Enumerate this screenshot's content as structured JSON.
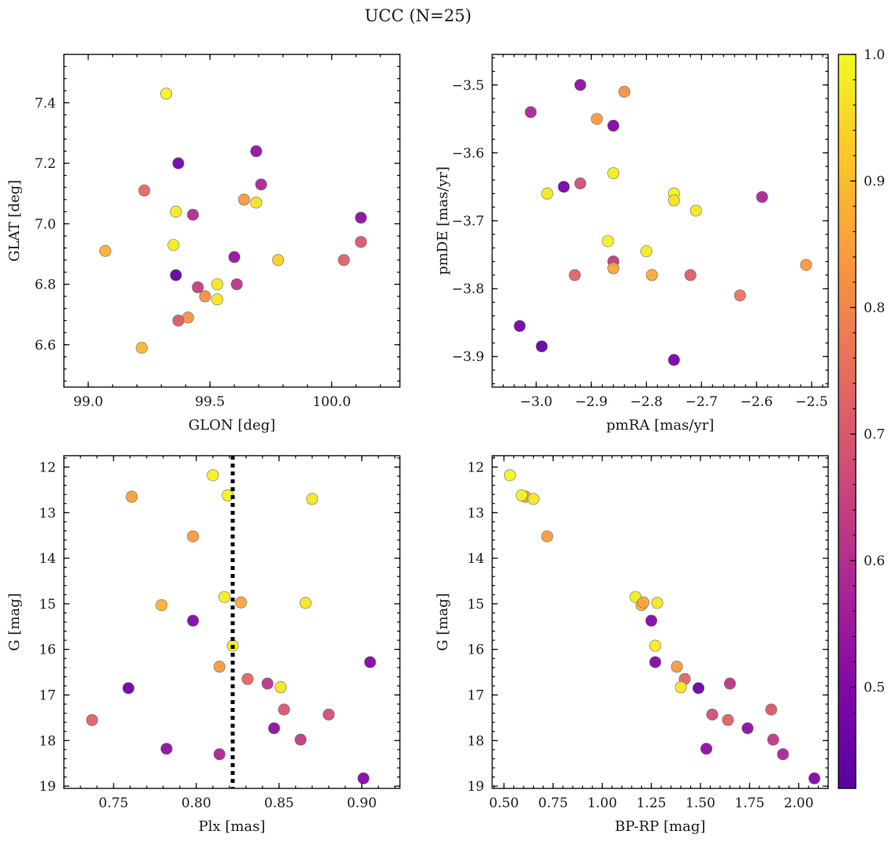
{
  "title": "UCC (N=25)",
  "colorbar": {
    "min": 0.42,
    "max": 1.0,
    "ticks": [
      0.5,
      0.6,
      0.7,
      0.8,
      0.9,
      1.0
    ],
    "tick_labels": [
      "0.5",
      "0.6",
      "0.7",
      "0.8",
      "0.9",
      "1.0"
    ],
    "colormap": "plasma"
  },
  "chart_data": [
    {
      "type": "scatter",
      "xlabel": "GLON [deg]",
      "ylabel": "GLAT [deg]",
      "xlim": [
        98.9,
        100.28
      ],
      "ylim": [
        6.46,
        7.56
      ],
      "y_inverted": false,
      "xticks": [
        99.0,
        99.5,
        100.0
      ],
      "xtick_labels": [
        "99.0",
        "99.5",
        "100.0"
      ],
      "yticks": [
        6.6,
        6.8,
        7.0,
        7.2,
        7.4
      ],
      "ytick_labels": [
        "6.6",
        "6.8",
        "7.0",
        "7.2",
        "7.4"
      ],
      "points": [
        {
          "x": 99.32,
          "y": 7.43,
          "c": 0.99
        },
        {
          "x": 99.37,
          "y": 7.2,
          "c": 0.47
        },
        {
          "x": 99.69,
          "y": 7.24,
          "c": 0.53
        },
        {
          "x": 99.23,
          "y": 7.11,
          "c": 0.74
        },
        {
          "x": 99.71,
          "y": 7.13,
          "c": 0.58
        },
        {
          "x": 99.64,
          "y": 7.08,
          "c": 0.84
        },
        {
          "x": 99.69,
          "y": 7.07,
          "c": 0.96
        },
        {
          "x": 99.36,
          "y": 7.04,
          "c": 0.98
        },
        {
          "x": 99.43,
          "y": 7.03,
          "c": 0.6
        },
        {
          "x": 100.12,
          "y": 7.02,
          "c": 0.52
        },
        {
          "x": 100.12,
          "y": 6.94,
          "c": 0.7
        },
        {
          "x": 99.35,
          "y": 6.93,
          "c": 0.98
        },
        {
          "x": 99.07,
          "y": 6.91,
          "c": 0.88
        },
        {
          "x": 99.6,
          "y": 6.89,
          "c": 0.53
        },
        {
          "x": 99.78,
          "y": 6.88,
          "c": 0.93
        },
        {
          "x": 100.05,
          "y": 6.88,
          "c": 0.72
        },
        {
          "x": 99.36,
          "y": 6.83,
          "c": 0.44
        },
        {
          "x": 99.61,
          "y": 6.8,
          "c": 0.62
        },
        {
          "x": 99.53,
          "y": 6.8,
          "c": 0.97
        },
        {
          "x": 99.45,
          "y": 6.79,
          "c": 0.64
        },
        {
          "x": 99.48,
          "y": 6.76,
          "c": 0.82
        },
        {
          "x": 99.53,
          "y": 6.75,
          "c": 0.97
        },
        {
          "x": 99.41,
          "y": 6.69,
          "c": 0.83
        },
        {
          "x": 99.37,
          "y": 6.68,
          "c": 0.7
        },
        {
          "x": 99.22,
          "y": 6.59,
          "c": 0.89
        }
      ]
    },
    {
      "type": "scatter",
      "xlabel": "pmRA [mas/yr]",
      "ylabel": "pmDE [mas/yr]",
      "xlim": [
        -3.08,
        -2.47
      ],
      "ylim": [
        -3.945,
        -3.455
      ],
      "y_inverted": false,
      "xticks": [
        -3.0,
        -2.9,
        -2.8,
        -2.7,
        -2.6,
        -2.5
      ],
      "xtick_labels": [
        "−3.0",
        "−2.9",
        "−2.8",
        "−2.7",
        "−2.6",
        "−2.5"
      ],
      "yticks": [
        -3.9,
        -3.8,
        -3.7,
        -3.6,
        -3.5
      ],
      "ytick_labels": [
        "−3.9",
        "−3.8",
        "−3.7",
        "−3.6",
        "−3.5"
      ],
      "points": [
        {
          "x": -2.92,
          "y": -3.5,
          "c": 0.52
        },
        {
          "x": -2.84,
          "y": -3.51,
          "c": 0.82
        },
        {
          "x": -3.01,
          "y": -3.54,
          "c": 0.58
        },
        {
          "x": -2.89,
          "y": -3.55,
          "c": 0.84
        },
        {
          "x": -2.86,
          "y": -3.56,
          "c": 0.5
        },
        {
          "x": -2.86,
          "y": -3.63,
          "c": 0.98
        },
        {
          "x": -2.95,
          "y": -3.65,
          "c": 0.48
        },
        {
          "x": -2.92,
          "y": -3.645,
          "c": 0.68
        },
        {
          "x": -2.98,
          "y": -3.66,
          "c": 0.97
        },
        {
          "x": -2.75,
          "y": -3.66,
          "c": 0.99
        },
        {
          "x": -2.75,
          "y": -3.67,
          "c": 0.96
        },
        {
          "x": -2.59,
          "y": -3.665,
          "c": 0.58
        },
        {
          "x": -2.71,
          "y": -3.685,
          "c": 0.97
        },
        {
          "x": -2.87,
          "y": -3.73,
          "c": 0.99
        },
        {
          "x": -2.8,
          "y": -3.745,
          "c": 0.98
        },
        {
          "x": -2.86,
          "y": -3.76,
          "c": 0.63
        },
        {
          "x": -2.51,
          "y": -3.765,
          "c": 0.84
        },
        {
          "x": -2.86,
          "y": -3.77,
          "c": 0.86
        },
        {
          "x": -2.93,
          "y": -3.78,
          "c": 0.72
        },
        {
          "x": -2.79,
          "y": -3.78,
          "c": 0.87
        },
        {
          "x": -2.72,
          "y": -3.78,
          "c": 0.71
        },
        {
          "x": -2.63,
          "y": -3.81,
          "c": 0.76
        },
        {
          "x": -3.03,
          "y": -3.855,
          "c": 0.47
        },
        {
          "x": -2.99,
          "y": -3.885,
          "c": 0.44
        },
        {
          "x": -2.75,
          "y": -3.905,
          "c": 0.48
        }
      ]
    },
    {
      "type": "scatter",
      "xlabel": "Plx [mas]",
      "ylabel": "G [mag]",
      "xlim": [
        0.72,
        0.923
      ],
      "ylim": [
        11.75,
        19.05
      ],
      "y_inverted": true,
      "vline": 0.822,
      "xticks": [
        0.75,
        0.8,
        0.85,
        0.9
      ],
      "xtick_labels": [
        "0.75",
        "0.80",
        "0.85",
        "0.90"
      ],
      "yticks": [
        12,
        13,
        14,
        15,
        16,
        17,
        18,
        19
      ],
      "ytick_labels": [
        "12",
        "13",
        "14",
        "15",
        "16",
        "17",
        "18",
        "19"
      ],
      "points": [
        {
          "x": 0.81,
          "y": 12.18,
          "c": 0.99
        },
        {
          "x": 0.761,
          "y": 12.65,
          "c": 0.85
        },
        {
          "x": 0.819,
          "y": 12.62,
          "c": 0.99
        },
        {
          "x": 0.87,
          "y": 12.7,
          "c": 0.97
        },
        {
          "x": 0.798,
          "y": 13.52,
          "c": 0.84
        },
        {
          "x": 0.817,
          "y": 14.85,
          "c": 0.98
        },
        {
          "x": 0.779,
          "y": 15.03,
          "c": 0.88
        },
        {
          "x": 0.827,
          "y": 14.97,
          "c": 0.86
        },
        {
          "x": 0.866,
          "y": 14.98,
          "c": 0.97
        },
        {
          "x": 0.798,
          "y": 15.37,
          "c": 0.5
        },
        {
          "x": 0.822,
          "y": 15.92,
          "c": 0.98
        },
        {
          "x": 0.905,
          "y": 16.28,
          "c": 0.5
        },
        {
          "x": 0.814,
          "y": 16.38,
          "c": 0.84
        },
        {
          "x": 0.831,
          "y": 16.65,
          "c": 0.73
        },
        {
          "x": 0.843,
          "y": 16.75,
          "c": 0.62
        },
        {
          "x": 0.851,
          "y": 16.83,
          "c": 0.97
        },
        {
          "x": 0.759,
          "y": 16.85,
          "c": 0.46
        },
        {
          "x": 0.853,
          "y": 17.32,
          "c": 0.7
        },
        {
          "x": 0.88,
          "y": 17.43,
          "c": 0.68
        },
        {
          "x": 0.737,
          "y": 17.55,
          "c": 0.72
        },
        {
          "x": 0.847,
          "y": 17.73,
          "c": 0.52
        },
        {
          "x": 0.863,
          "y": 17.98,
          "c": 0.63
        },
        {
          "x": 0.782,
          "y": 18.18,
          "c": 0.52
        },
        {
          "x": 0.814,
          "y": 18.3,
          "c": 0.58
        },
        {
          "x": 0.901,
          "y": 18.83,
          "c": 0.5
        }
      ]
    },
    {
      "type": "scatter",
      "xlabel": "BP-RP [mag]",
      "ylabel": "G [mag]",
      "xlim": [
        0.44,
        2.15
      ],
      "ylim": [
        11.75,
        19.05
      ],
      "y_inverted": true,
      "xticks": [
        0.5,
        0.75,
        1.0,
        1.25,
        1.5,
        1.75,
        2.0
      ],
      "xtick_labels": [
        "0.50",
        "0.75",
        "1.00",
        "1.25",
        "1.50",
        "1.75",
        "2.00"
      ],
      "yticks": [
        12,
        13,
        14,
        15,
        16,
        17,
        18,
        19
      ],
      "ytick_labels": [
        "12",
        "13",
        "14",
        "15",
        "16",
        "17",
        "18",
        "19"
      ],
      "points": [
        {
          "x": 0.53,
          "y": 12.18,
          "c": 0.99
        },
        {
          "x": 0.61,
          "y": 12.65,
          "c": 0.85
        },
        {
          "x": 0.59,
          "y": 12.62,
          "c": 0.99
        },
        {
          "x": 0.65,
          "y": 12.7,
          "c": 0.97
        },
        {
          "x": 0.72,
          "y": 13.52,
          "c": 0.84
        },
        {
          "x": 1.17,
          "y": 14.85,
          "c": 0.98
        },
        {
          "x": 1.2,
          "y": 15.03,
          "c": 0.88
        },
        {
          "x": 1.21,
          "y": 14.97,
          "c": 0.86
        },
        {
          "x": 1.28,
          "y": 14.98,
          "c": 0.97
        },
        {
          "x": 1.25,
          "y": 15.37,
          "c": 0.5
        },
        {
          "x": 1.27,
          "y": 15.92,
          "c": 0.98
        },
        {
          "x": 1.27,
          "y": 16.28,
          "c": 0.5
        },
        {
          "x": 1.38,
          "y": 16.38,
          "c": 0.84
        },
        {
          "x": 1.42,
          "y": 16.65,
          "c": 0.73
        },
        {
          "x": 1.65,
          "y": 16.75,
          "c": 0.62
        },
        {
          "x": 1.4,
          "y": 16.83,
          "c": 0.97
        },
        {
          "x": 1.49,
          "y": 16.85,
          "c": 0.46
        },
        {
          "x": 1.86,
          "y": 17.32,
          "c": 0.7
        },
        {
          "x": 1.56,
          "y": 17.43,
          "c": 0.68
        },
        {
          "x": 1.64,
          "y": 17.55,
          "c": 0.72
        },
        {
          "x": 1.74,
          "y": 17.73,
          "c": 0.52
        },
        {
          "x": 1.87,
          "y": 17.98,
          "c": 0.63
        },
        {
          "x": 1.53,
          "y": 18.18,
          "c": 0.52
        },
        {
          "x": 1.92,
          "y": 18.3,
          "c": 0.58
        },
        {
          "x": 2.08,
          "y": 18.83,
          "c": 0.5
        }
      ]
    }
  ]
}
